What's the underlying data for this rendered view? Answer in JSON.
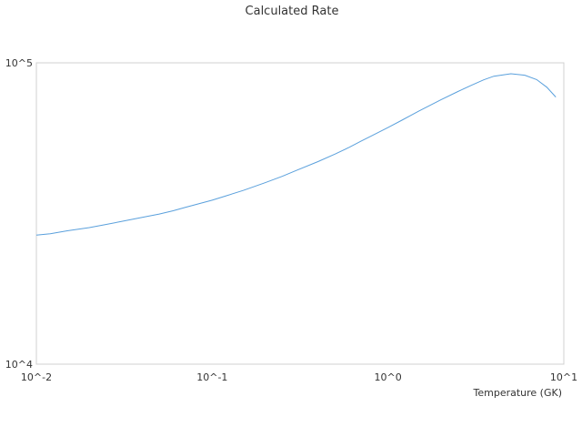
{
  "chart_data": {
    "type": "line",
    "title": "Calculated Rate",
    "xlabel": "Temperature (GK)",
    "ylabel": "",
    "x_scale": "log",
    "y_scale": "log",
    "xlim": [
      0.01,
      10
    ],
    "ylim": [
      10000,
      100000
    ],
    "x_ticks": [
      {
        "value": 0.01,
        "label": "10^-2"
      },
      {
        "value": 0.1,
        "label": "10^-1"
      },
      {
        "value": 1,
        "label": "10^0"
      },
      {
        "value": 10,
        "label": "10^1"
      }
    ],
    "y_ticks": [
      {
        "value": 10000,
        "label": "10^4"
      },
      {
        "value": 100000,
        "label": "10^5"
      }
    ],
    "grid": false,
    "legend": "none",
    "series": [
      {
        "color": "#5aa0dc",
        "x": [
          0.01,
          0.012,
          0.015,
          0.02,
          0.025,
          0.03,
          0.04,
          0.05,
          0.06,
          0.07,
          0.08,
          0.1,
          0.12,
          0.15,
          0.2,
          0.25,
          0.3,
          0.4,
          0.5,
          0.6,
          0.7,
          0.8,
          1.0,
          1.2,
          1.5,
          2.0,
          2.5,
          3.0,
          3.5,
          4.0,
          5.0,
          6.0,
          7.0,
          8.0,
          9.0
        ],
        "y": [
          26800,
          27100,
          27700,
          28400,
          29100,
          29700,
          30700,
          31500,
          32300,
          33100,
          33800,
          35000,
          36200,
          37700,
          40000,
          42000,
          43900,
          47000,
          49800,
          52400,
          54900,
          57100,
          61000,
          64500,
          69200,
          75400,
          80300,
          84400,
          87800,
          90300,
          92000,
          91000,
          88000,
          83000,
          77000
        ]
      }
    ]
  }
}
